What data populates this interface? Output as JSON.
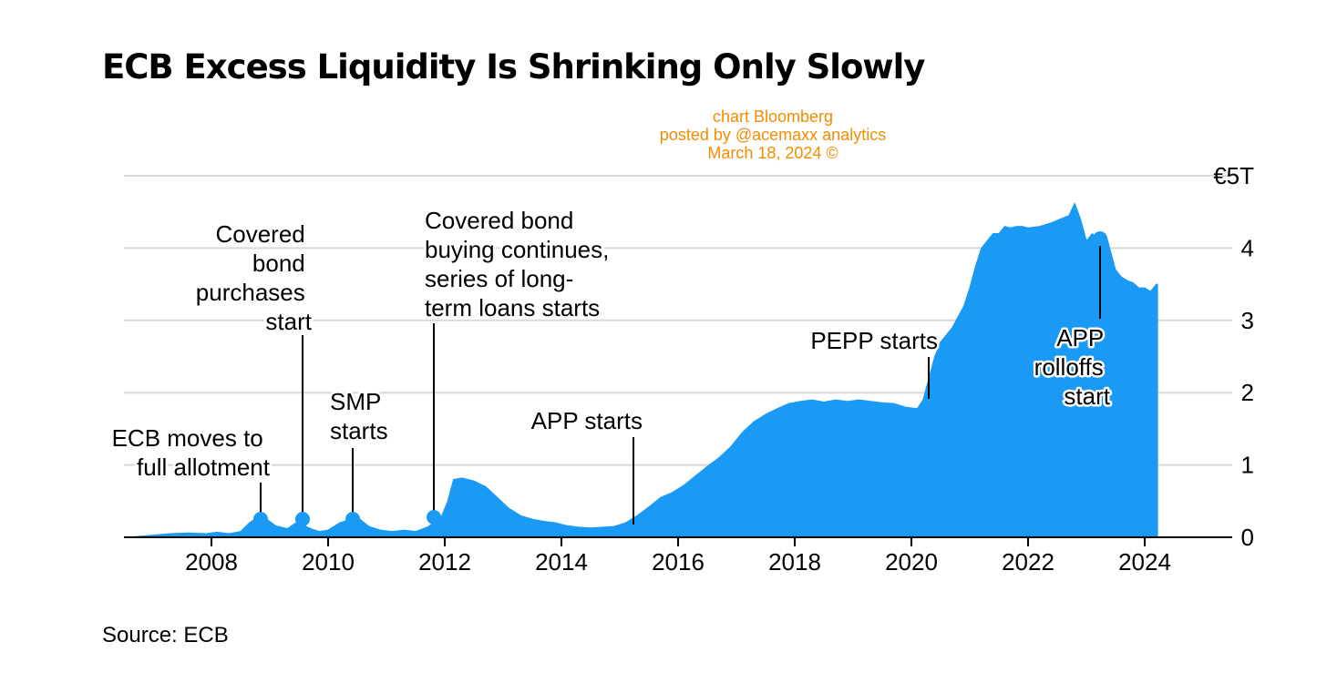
{
  "colors": {
    "area": "#1a9af5",
    "grid": "#d9d9d9",
    "axis": "#000000",
    "watermark": "#f28c00"
  },
  "watermark": {
    "lines": [
      "chart Bloomberg",
      "posted by @acemaxx analytics",
      "March 18, 2024 ©"
    ]
  },
  "source": "Source: ECB",
  "chart_data": {
    "type": "area",
    "title": "ECB Excess Liquidity Is Shrinking Only Slowly",
    "xlabel": "",
    "ylabel": "",
    "y_unit_label": "€5T",
    "xlim": [
      2006.5,
      2025.5
    ],
    "ylim": [
      0,
      5
    ],
    "x_ticks": [
      2008,
      2010,
      2012,
      2014,
      2016,
      2018,
      2020,
      2022,
      2024
    ],
    "y_ticks": [
      0,
      1,
      2,
      3,
      4,
      5
    ],
    "y_tick_labels": [
      "0",
      "1",
      "2",
      "3",
      "4",
      "€5T"
    ],
    "grid": true,
    "series": [
      {
        "x": [
          2006.55,
          2007.0,
          2007.3,
          2007.6,
          2007.9,
          2008.1,
          2008.3,
          2008.5,
          2008.65,
          2008.8,
          2008.95,
          2009.1,
          2009.3,
          2009.45,
          2009.55,
          2009.7,
          2009.85,
          2010.0,
          2010.2,
          2010.35,
          2010.5,
          2010.7,
          2010.9,
          2011.1,
          2011.3,
          2011.5,
          2011.7,
          2011.85,
          2011.95,
          2012.05,
          2012.15,
          2012.3,
          2012.5,
          2012.7,
          2012.9,
          2013.1,
          2013.3,
          2013.5,
          2013.7,
          2013.9,
          2014.1,
          2014.3,
          2014.5,
          2014.7,
          2014.9,
          2015.1,
          2015.3,
          2015.5,
          2015.7,
          2015.9,
          2016.1,
          2016.3,
          2016.5,
          2016.7,
          2016.9,
          2017.1,
          2017.3,
          2017.5,
          2017.7,
          2017.9,
          2018.1,
          2018.3,
          2018.5,
          2018.7,
          2018.9,
          2019.1,
          2019.3,
          2019.5,
          2019.7,
          2019.9,
          2020.1,
          2020.2,
          2020.3,
          2020.4,
          2020.5,
          2020.6,
          2020.7,
          2020.8,
          2020.9,
          2021.0,
          2021.1,
          2021.2,
          2021.3,
          2021.4,
          2021.5,
          2021.6,
          2021.7,
          2021.8,
          2021.9,
          2022.0,
          2022.2,
          2022.4,
          2022.55,
          2022.7,
          2022.8,
          2022.9,
          2023.0,
          2023.1,
          2023.2,
          2023.35,
          2023.5,
          2023.6,
          2023.7,
          2023.8,
          2023.9,
          2024.0,
          2024.1,
          2024.2,
          2024.22
        ],
        "values": [
          0.0,
          0.03,
          0.05,
          0.06,
          0.05,
          0.07,
          0.05,
          0.08,
          0.2,
          0.28,
          0.25,
          0.16,
          0.12,
          0.2,
          0.18,
          0.12,
          0.08,
          0.1,
          0.2,
          0.24,
          0.28,
          0.15,
          0.1,
          0.08,
          0.1,
          0.08,
          0.14,
          0.22,
          0.3,
          0.5,
          0.8,
          0.82,
          0.78,
          0.7,
          0.55,
          0.4,
          0.3,
          0.25,
          0.22,
          0.2,
          0.16,
          0.14,
          0.13,
          0.14,
          0.15,
          0.2,
          0.3,
          0.42,
          0.55,
          0.62,
          0.72,
          0.85,
          0.98,
          1.1,
          1.25,
          1.45,
          1.6,
          1.7,
          1.78,
          1.85,
          1.88,
          1.9,
          1.87,
          1.9,
          1.88,
          1.9,
          1.88,
          1.86,
          1.85,
          1.8,
          1.78,
          1.9,
          2.2,
          2.5,
          2.7,
          2.8,
          2.9,
          3.05,
          3.2,
          3.45,
          3.75,
          4.0,
          4.1,
          4.2,
          4.2,
          4.3,
          4.28,
          4.3,
          4.3,
          4.28,
          4.3,
          4.35,
          4.4,
          4.45,
          4.62,
          4.4,
          4.1,
          4.2,
          4.12,
          4.15,
          3.7,
          3.6,
          3.55,
          3.52,
          3.45,
          3.45,
          3.4,
          3.5,
          3.5
        ]
      }
    ],
    "markers": [
      {
        "x": 2008.8,
        "y": 0.26
      },
      {
        "x": 2009.5,
        "y": 0.26
      },
      {
        "x": 2010.4,
        "y": 0.26
      },
      {
        "x": 2011.95,
        "y": 0.3
      },
      {
        "x": 2023.15,
        "y": 4.12
      }
    ],
    "annotations": [
      {
        "lines": [
          "ECB moves to",
          "full allotment"
        ],
        "x": 2008.8,
        "y": 0.26
      },
      {
        "lines": [
          "Covered",
          "bond",
          "purchases",
          "start"
        ],
        "x": 2009.5,
        "y": 0.26
      },
      {
        "lines": [
          "SMP",
          "starts"
        ],
        "x": 2010.4,
        "y": 0.26
      },
      {
        "lines": [
          "Covered bond",
          "buying continues,",
          "series of long-",
          "term loans starts"
        ],
        "x": 2011.95,
        "y": 0.3
      },
      {
        "lines": [
          "APP starts"
        ],
        "x": 2015.15,
        "y": 0.2
      },
      {
        "lines": [
          "PEPP starts"
        ],
        "x": 2020.2,
        "y": 1.88
      },
      {
        "lines": [
          "APP",
          "rolloffs",
          "start"
        ],
        "x": 2023.15,
        "y": 4.12
      }
    ]
  }
}
